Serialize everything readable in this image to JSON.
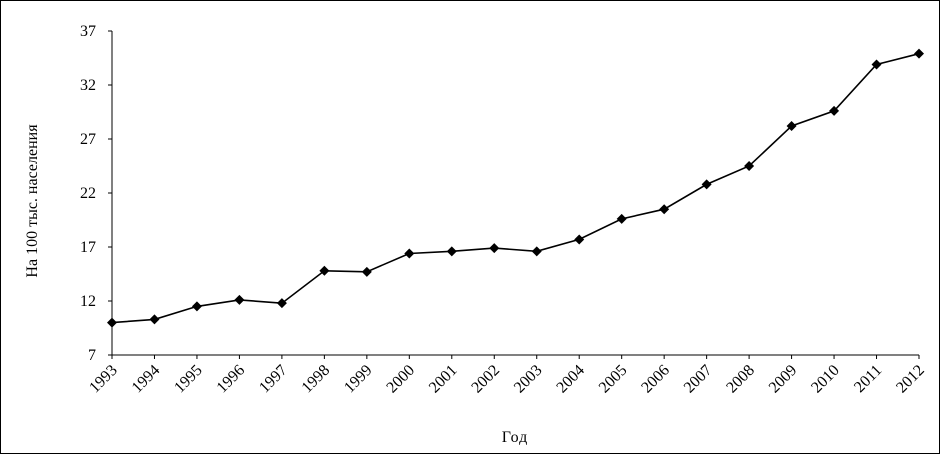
{
  "chart_data": {
    "type": "line",
    "title": "",
    "xlabel": "Год",
    "ylabel": "На 100 тыс. населения",
    "ylim": [
      7,
      37
    ],
    "yticks": [
      7,
      12,
      17,
      22,
      27,
      32,
      37
    ],
    "grid": false,
    "legend": "none",
    "categories": [
      "1993",
      "1994",
      "1995",
      "1996",
      "1997",
      "1998",
      "1999",
      "2000",
      "2001",
      "2002",
      "2003",
      "2004",
      "2005",
      "2006",
      "2007",
      "2008",
      "2009",
      "2010",
      "2011",
      "2012"
    ],
    "series": [
      {
        "values": [
          10.0,
          10.3,
          11.5,
          12.1,
          11.8,
          14.8,
          14.7,
          16.4,
          16.6,
          16.9,
          16.6,
          17.7,
          19.6,
          20.5,
          22.8,
          24.5,
          28.2,
          29.6,
          33.9,
          34.9
        ],
        "color": "#000000",
        "marker": "diamond"
      }
    ]
  }
}
